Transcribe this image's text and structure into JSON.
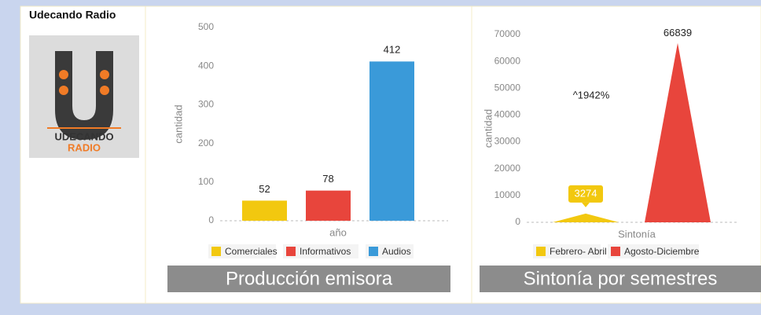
{
  "header": {
    "title": "Udecando Radio",
    "logo": [
      "UDECANDO",
      "RADIO"
    ]
  },
  "chart_data": [
    {
      "type": "bar",
      "title": "Producción emisora",
      "xlabel": "año",
      "ylabel": "cantidad",
      "categories": [
        "Comerciales",
        "Informativos",
        "Audios"
      ],
      "values": [
        52,
        78,
        412
      ],
      "colors": [
        "#f2c80f",
        "#e8453c",
        "#3a9ad9"
      ],
      "ylim": [
        0,
        500
      ],
      "yticks": [
        0,
        100,
        200,
        300,
        400,
        500
      ]
    },
    {
      "type": "triangle",
      "title": "Sintonía por semestres",
      "xlabel": "Sintonía",
      "ylabel": "cantidad",
      "categories": [
        "Febrero- Abril",
        "Agosto-Diciembre"
      ],
      "values": [
        3274,
        66839
      ],
      "colors": [
        "#f2c80f",
        "#e8453c"
      ],
      "annotation": "^1942%",
      "ylim": [
        0,
        70000
      ],
      "yticks": [
        0,
        10000,
        20000,
        30000,
        40000,
        50000,
        60000,
        70000
      ]
    }
  ]
}
